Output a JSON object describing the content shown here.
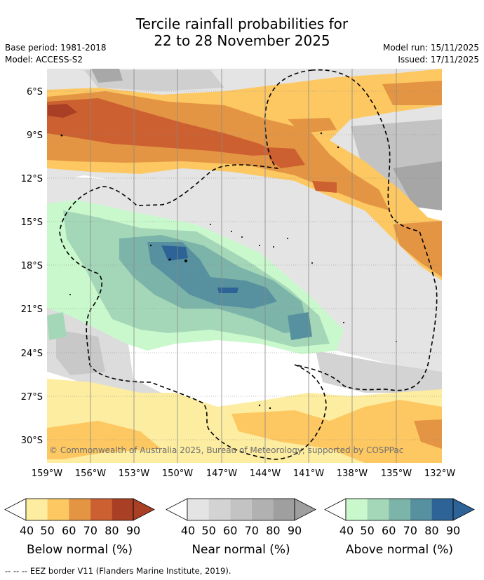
{
  "header": {
    "title_line1": "Tercile rainfall probabilities for",
    "title_line2": "22 to 28 November 2025",
    "base_period": "Base period: 1981-2018",
    "model": "Model: ACCESS-S2",
    "model_run": "Model run: 15/11/2025",
    "issued": "Issued: 17/11/2025"
  },
  "map": {
    "lat_labels": [
      "6°S",
      "9°S",
      "12°S",
      "15°S",
      "18°S",
      "21°S",
      "24°S",
      "27°S",
      "30°S"
    ],
    "lon_labels": [
      "159°W",
      "156°W",
      "153°W",
      "150°W",
      "147°W",
      "144°W",
      "141°W",
      "138°W",
      "135°W",
      "132°W"
    ],
    "copyright": "© Commonwealth of Australia 2025, Bureau of Meteorology, supported by COSPPac"
  },
  "colorbars": [
    {
      "label": "Below normal (%)",
      "ticks": [
        "40",
        "50",
        "60",
        "70",
        "80",
        "90"
      ],
      "colors": [
        "#fdeda0",
        "#fdc862",
        "#e49543",
        "#cc6030",
        "#a94025"
      ]
    },
    {
      "label": "Near normal (%)",
      "ticks": [
        "40",
        "50",
        "60",
        "70",
        "80",
        "90"
      ],
      "colors": [
        "#e4e4e4",
        "#d3d3d3",
        "#c3c3c3",
        "#b1b1b1",
        "#9f9f9f"
      ]
    },
    {
      "label": "Above normal (%)",
      "ticks": [
        "40",
        "50",
        "60",
        "70",
        "80",
        "90"
      ],
      "colors": [
        "#c9f8cc",
        "#a4d7b8",
        "#7db4a9",
        "#57919f",
        "#2d6396"
      ]
    }
  ],
  "legend": {
    "eez_note": "--  --  -- EEZ border V11 (Flanders Marine Institute, 2019)."
  }
}
